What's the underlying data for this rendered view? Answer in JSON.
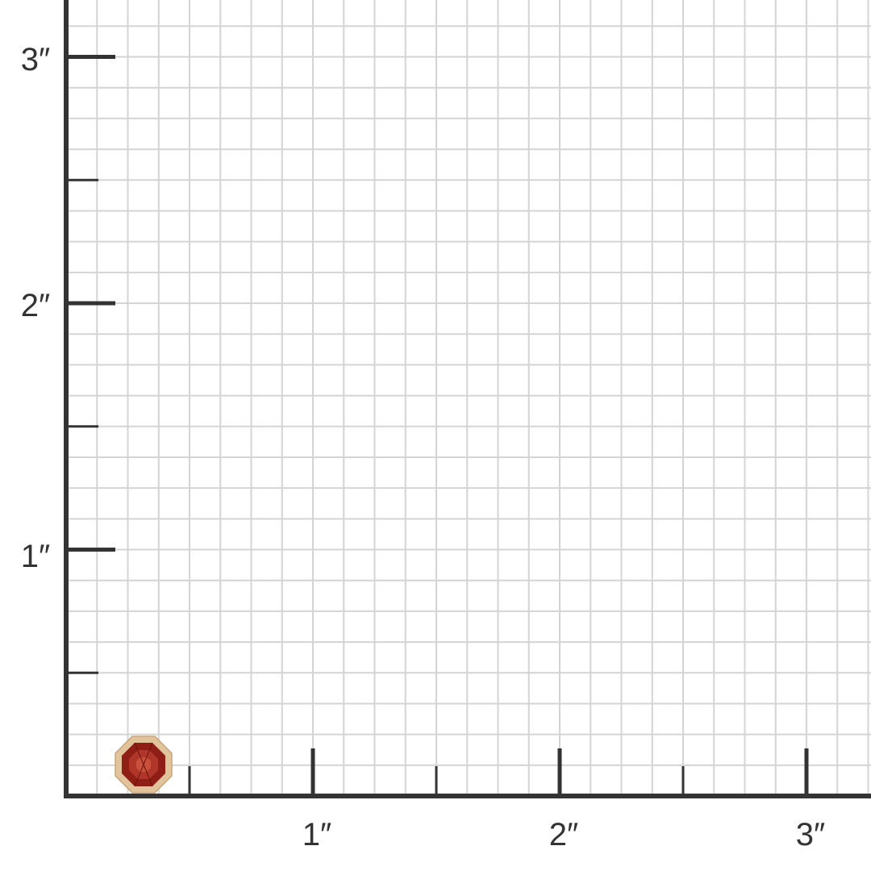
{
  "scale": {
    "unit_mark": "″",
    "x_labels": [
      "1″",
      "2″",
      "3″"
    ],
    "y_labels": [
      "1″",
      "2″",
      "3″"
    ],
    "grid_divisions_per_inch": 8
  },
  "product": {
    "item": "octagon-gemstone-bezel-stud",
    "colors": {
      "gem": "#8e1e16",
      "metal": "#e2c49c",
      "axis": "#333333",
      "grid": "#d4d4d4"
    }
  }
}
